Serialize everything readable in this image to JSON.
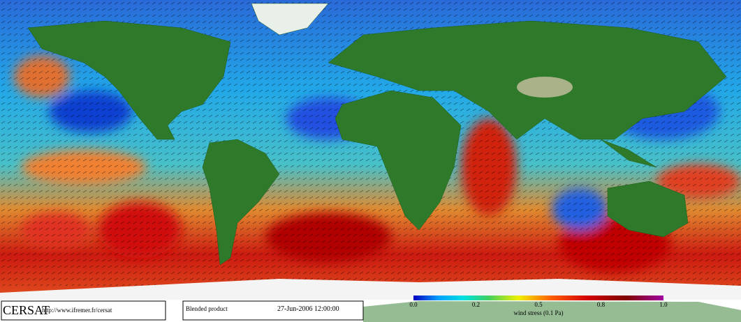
{
  "footer": {
    "logo": "CERSAT",
    "url": "http://www.ifremer.fr/cersat",
    "product": "Blended product",
    "date": "27-Jun-2006 12:00:00"
  },
  "colorbar": {
    "ticks": [
      "0.0",
      "0.2",
      "0.5",
      "0.8",
      "1.0"
    ],
    "label": "wind stress (0.1 Pa)"
  }
}
